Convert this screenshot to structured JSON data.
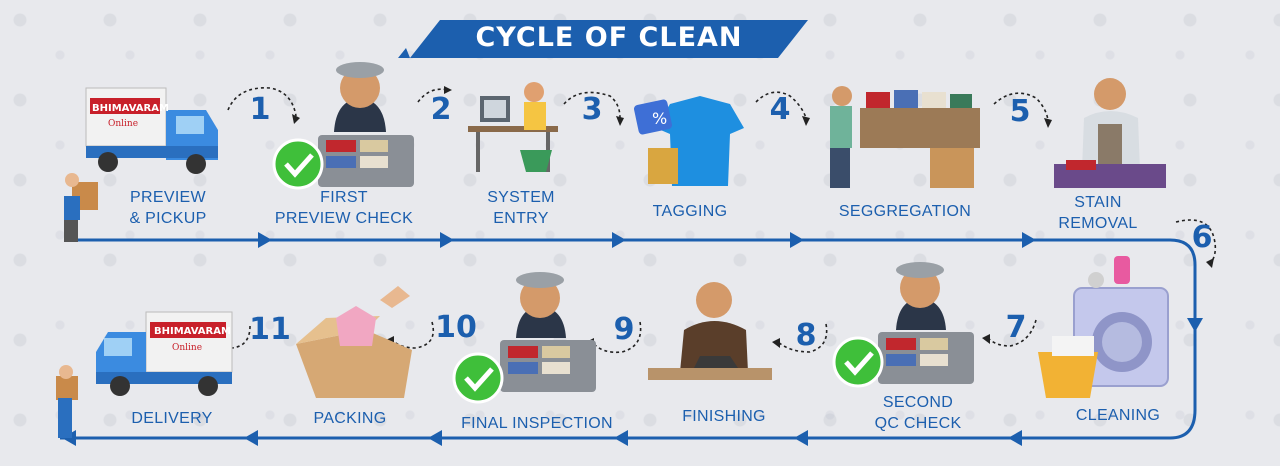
{
  "title": "CYCLE OF CLEAN",
  "colors": {
    "primary": "#1c5fae",
    "banner": "#1c5fae",
    "check": "#3fbf3a",
    "background": "#e8e9ed"
  },
  "steps": [
    {
      "number": "",
      "label": "PREVIEW\n& PICKUP",
      "icon": "delivery-truck-icon"
    },
    {
      "number": "1",
      "label": "FIRST\nPREVIEW CHECK",
      "icon": "worker-check-icon"
    },
    {
      "number": "2",
      "label": "SYSTEM\nENTRY",
      "icon": "computer-desk-icon"
    },
    {
      "number": "3",
      "label": "TAGGING",
      "icon": "tagged-shirt-icon"
    },
    {
      "number": "4",
      "label": "SEGGREGATION",
      "icon": "sorting-table-icon"
    },
    {
      "number": "5",
      "label": "STAIN\nREMOVAL",
      "icon": "stain-removal-worker-icon"
    },
    {
      "number": "6",
      "label": "CLEANING",
      "icon": "washing-machine-icon"
    },
    {
      "number": "7",
      "label": "SECOND\nQC CHECK",
      "icon": "worker-check-icon"
    },
    {
      "number": "8",
      "label": "FINISHING",
      "icon": "ironing-worker-icon"
    },
    {
      "number": "9",
      "label": "FINAL INSPECTION",
      "icon": "worker-check-icon"
    },
    {
      "number": "10",
      "label": "PACKING",
      "icon": "packing-box-icon"
    },
    {
      "number": "11",
      "label": "DELIVERY",
      "icon": "delivery-truck-icon"
    }
  ],
  "truck_brand": {
    "name": "BHIMAVARAM",
    "sub": "Online"
  }
}
